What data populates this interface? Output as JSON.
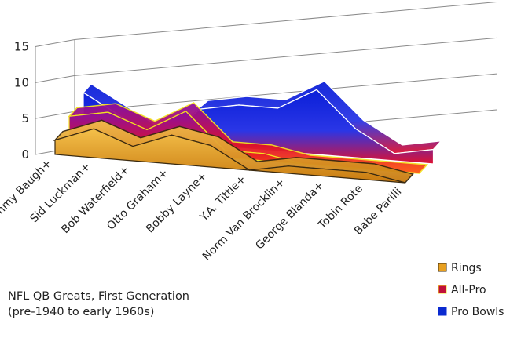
{
  "chart_data": {
    "type": "area",
    "title": "NFL QB Greats, First Generation",
    "subtitle": "(pre-1940 to early 1960s)",
    "categories": [
      "Sammy Baugh+",
      "Sid Luckman+",
      "Bob Waterfield+",
      "Otto Graham+",
      "Bobby Layne+",
      "Y.A. Tittle+",
      "Norm Van Brocklin+",
      "George Blanda+",
      "Tobin Rote",
      "Babe Parilli"
    ],
    "y_ticks": [
      "0",
      "5",
      "10",
      "15"
    ],
    "ylim": [
      0,
      15
    ],
    "grid": true,
    "legend_position": "bottom-right",
    "series": [
      {
        "name": "Rings",
        "values": [
          2,
          4,
          2,
          4,
          3,
          0,
          1,
          1,
          1,
          0
        ],
        "color": "#e8a020"
      },
      {
        "name": "All-Pro",
        "values": [
          4,
          5,
          3,
          6,
          1,
          1,
          0,
          0,
          0,
          0
        ],
        "color": "#c0103a"
      },
      {
        "name": "Pro Bowls",
        "values": [
          6,
          3,
          0,
          5,
          6,
          6,
          9,
          4,
          1,
          2
        ],
        "color": "#0a2ad0"
      }
    ]
  }
}
